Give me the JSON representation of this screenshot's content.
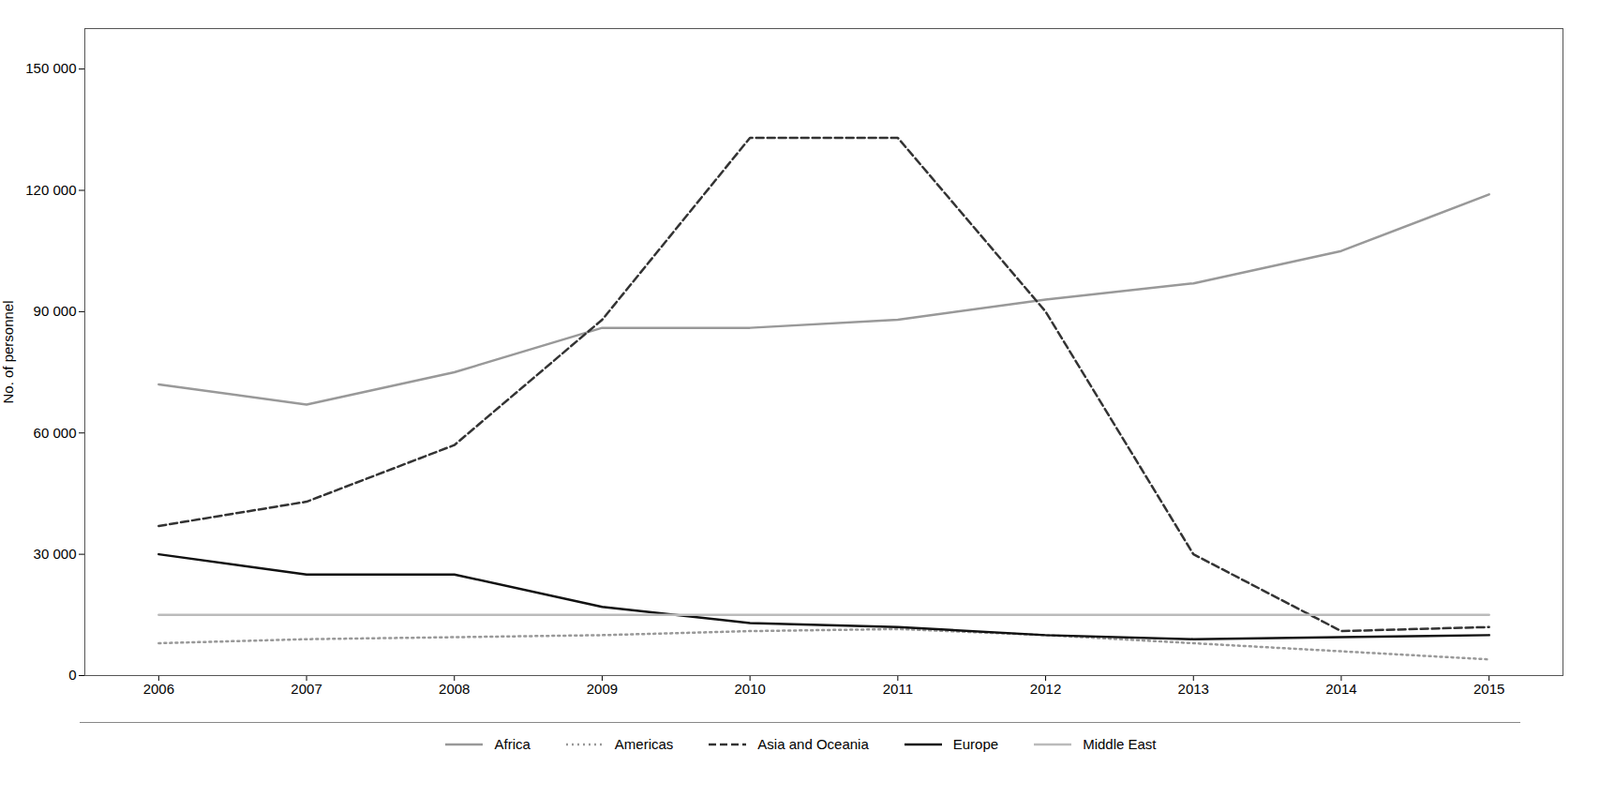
{
  "chart_data": {
    "type": "line",
    "ylabel": "No. of personnel",
    "x": [
      2006,
      2007,
      2008,
      2009,
      2010,
      2011,
      2012,
      2013,
      2014,
      2015
    ],
    "series": [
      {
        "name": "Africa",
        "color": "#999999",
        "line_style": "solid",
        "values": [
          72000,
          67000,
          75000,
          86000,
          86000,
          88000,
          93000,
          97000,
          105000,
          119000
        ]
      },
      {
        "name": "Americas",
        "color": "#999999",
        "line_style": "dotted",
        "values": [
          8000,
          9000,
          9500,
          10000,
          11000,
          11500,
          10000,
          8000,
          6000,
          4000
        ]
      },
      {
        "name": "Asia and Oceania",
        "color": "#333333",
        "line_style": "dashed",
        "values": [
          37000,
          43000,
          57000,
          88000,
          133000,
          133000,
          90000,
          30000,
          11000,
          12000
        ]
      },
      {
        "name": "Europe",
        "color": "#111111",
        "line_style": "solid",
        "values": [
          30000,
          25000,
          25000,
          17000,
          13000,
          12000,
          10000,
          9000,
          9500,
          10000
        ]
      },
      {
        "name": "Middle East",
        "color": "#bbbbbb",
        "line_style": "solid",
        "values": [
          15000,
          15000,
          15000,
          15000,
          15000,
          15000,
          15000,
          15000,
          15000,
          15000
        ]
      }
    ],
    "xlim": [
      2005.5,
      2015.5
    ],
    "xticks": [
      2006,
      2007,
      2008,
      2009,
      2010,
      2011,
      2012,
      2013,
      2014,
      2015
    ],
    "ylim": [
      0,
      160000
    ],
    "yticks": [
      0,
      {
        "value": 30000,
        "label": "30 000"
      },
      {
        "value": 60000,
        "label": "60 000"
      },
      {
        "value": 90000,
        "label": "90 000"
      },
      {
        "value": 120000,
        "label": "120 000"
      },
      {
        "value": 150000,
        "label": "150 000"
      }
    ],
    "grid": false,
    "legend": "bottom"
  }
}
